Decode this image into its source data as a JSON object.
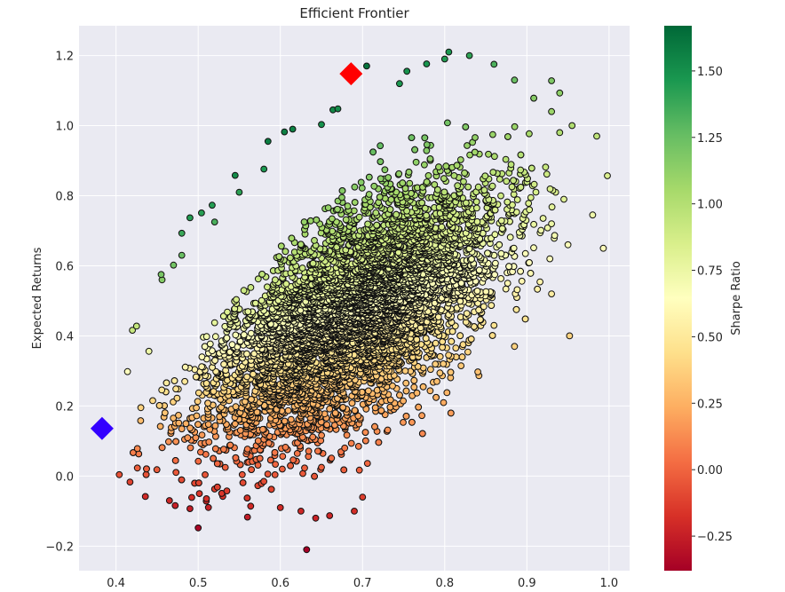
{
  "chart_data": {
    "type": "scatter",
    "title": "Efficient Frontier",
    "xlabel": "",
    "ylabel": "Expected Returns",
    "xlim": [
      0.355,
      1.025
    ],
    "ylim": [
      -0.27,
      1.285
    ],
    "xticks": [
      0.4,
      0.5,
      0.6,
      0.7,
      0.8,
      0.9,
      1.0
    ],
    "xtick_labels": [
      "0.4",
      "0.5",
      "0.6",
      "0.7",
      "0.8",
      "0.9",
      "1.0"
    ],
    "yticks": [
      -0.2,
      0.0,
      0.2,
      0.4,
      0.6,
      0.8,
      1.0,
      1.2
    ],
    "ytick_labels": [
      "−0.2",
      "0.0",
      "0.2",
      "0.4",
      "0.6",
      "0.8",
      "1.0",
      "1.2"
    ],
    "grid": true,
    "background": "#eaeaf2",
    "colormap": "RdYlGn",
    "colorbar": {
      "label": "Sharpe Ratio",
      "range": [
        -0.38,
        1.67
      ],
      "ticks": [
        -0.25,
        0.0,
        0.25,
        0.5,
        0.75,
        1.0,
        1.25,
        1.5
      ],
      "tick_labels": [
        "−0.25",
        "0.00",
        "0.25",
        "0.50",
        "0.75",
        "1.00",
        "1.25",
        "1.50"
      ]
    },
    "markers": [
      {
        "name": "max-sharpe",
        "x": 0.686,
        "y": 1.148,
        "shape": "diamond",
        "color": "#ff0000"
      },
      {
        "name": "min-volatility",
        "x": 0.383,
        "y": 0.136,
        "shape": "diamond",
        "color": "#3300ff"
      }
    ],
    "points": [
      [
        0.404,
        0.004
      ],
      [
        0.417,
        -0.017
      ],
      [
        0.426,
        0.023
      ],
      [
        0.414,
        0.298
      ],
      [
        0.42,
        0.416
      ],
      [
        0.425,
        0.428
      ],
      [
        0.43,
        0.158
      ],
      [
        0.44,
        0.356
      ],
      [
        0.455,
        0.575
      ],
      [
        0.456,
        0.56
      ],
      [
        0.47,
        0.602
      ],
      [
        0.48,
        0.63
      ],
      [
        0.48,
        0.693
      ],
      [
        0.465,
        -0.07
      ],
      [
        0.472,
        -0.084
      ],
      [
        0.49,
        -0.093
      ],
      [
        0.49,
        0.737
      ],
      [
        0.5,
        -0.148
      ],
      [
        0.504,
        0.751
      ],
      [
        0.52,
        -0.037
      ],
      [
        0.517,
        0.773
      ],
      [
        0.52,
        0.725
      ],
      [
        0.53,
        -0.058
      ],
      [
        0.545,
        0.858
      ],
      [
        0.56,
        -0.117
      ],
      [
        0.55,
        0.81
      ],
      [
        0.58,
        0.876
      ],
      [
        0.585,
        0.955
      ],
      [
        0.6,
        -0.09
      ],
      [
        0.605,
        0.982
      ],
      [
        0.615,
        0.99
      ],
      [
        0.625,
        -0.1
      ],
      [
        0.632,
        -0.21
      ],
      [
        0.643,
        -0.12
      ],
      [
        0.65,
        1.003
      ],
      [
        0.664,
        1.045
      ],
      [
        0.67,
        1.048
      ],
      [
        0.66,
        -0.113
      ],
      [
        0.7,
        -0.06
      ],
      [
        0.69,
        -0.1
      ],
      [
        0.705,
        1.17
      ],
      [
        0.745,
        1.12
      ],
      [
        0.754,
        1.155
      ],
      [
        0.778,
        1.176
      ],
      [
        0.8,
        1.19
      ],
      [
        0.805,
        1.21
      ],
      [
        0.83,
        1.2
      ],
      [
        0.86,
        1.175
      ],
      [
        0.885,
        1.13
      ],
      [
        0.93,
        1.128
      ],
      [
        0.94,
        1.093
      ],
      [
        0.93,
        1.04
      ],
      [
        0.955,
        1.0
      ],
      [
        0.94,
        0.98
      ],
      [
        0.985,
        0.97
      ],
      [
        0.998,
        0.857
      ],
      [
        0.935,
        0.81
      ],
      [
        0.945,
        0.79
      ],
      [
        0.98,
        0.745
      ],
      [
        0.993,
        0.65
      ],
      [
        0.95,
        0.66
      ],
      [
        0.93,
        0.72
      ],
      [
        0.928,
        0.62
      ],
      [
        0.952,
        0.4
      ],
      [
        0.93,
        0.52
      ],
      [
        0.916,
        0.554
      ],
      [
        0.86,
        0.43
      ],
      [
        0.885,
        0.37
      ]
    ],
    "cloud": {
      "count": 8000,
      "mean_x": 0.688,
      "mean_y": 0.46,
      "sd_major": 0.175,
      "sd_minor": 0.085,
      "tilt": 0.72,
      "bounds": {
        "xmin": 0.415,
        "xmax": 0.935,
        "ymin": -0.1,
        "ymax": 1.13
      }
    }
  }
}
